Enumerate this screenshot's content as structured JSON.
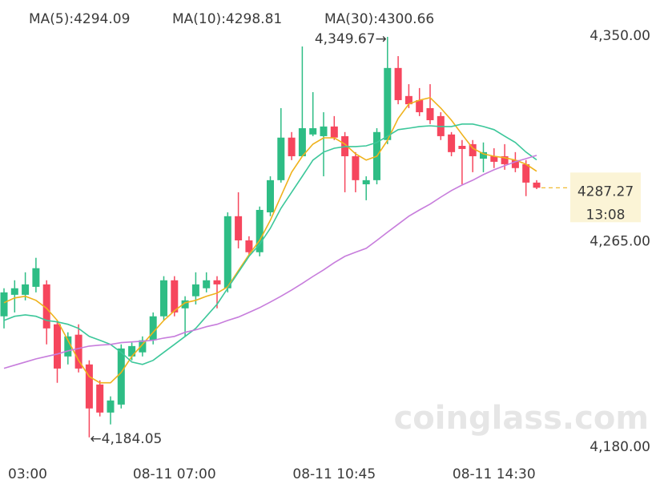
{
  "chart_data": {
    "type": "candlestick",
    "categories": [
      "03:00",
      null,
      null,
      null,
      null,
      null,
      null,
      null,
      null,
      null,
      null,
      null,
      null,
      null,
      null,
      null,
      "08-11 07:00",
      null,
      null,
      null,
      null,
      null,
      null,
      null,
      null,
      null,
      null,
      null,
      null,
      null,
      null,
      "08-11 10:45",
      null,
      null,
      null,
      null,
      null,
      null,
      null,
      null,
      null,
      null,
      null,
      null,
      null,
      null,
      "08-11 14:30",
      null,
      null,
      null,
      null
    ],
    "open": [
      4234.1,
      4243.0,
      4243.0,
      4246.3,
      4247.3,
      4230.8,
      4217.5,
      4226.5,
      4214.2,
      4205.9,
      4194.3,
      4197.6,
      4217.5,
      4219.2,
      4224.2,
      4234.1,
      4249.0,
      4237.4,
      4242.4,
      4245.7,
      4249.0,
      4245.7,
      4275.5,
      4265.5,
      4260.6,
      4277.1,
      4290.4,
      4308.0,
      4300.3,
      4309.3,
      4308.6,
      4312.6,
      4308.6,
      4300.3,
      4288.7,
      4290.4,
      4307.0,
      4336.8,
      4325.2,
      4323.5,
      4320.2,
      4316.9,
      4309.3,
      4304.6,
      4305.3,
      4299.3,
      4300.3,
      4300.3,
      4298.7,
      4297.0,
      4289.4
    ],
    "high": [
      4245.7,
      4249.0,
      4252.3,
      4258.3,
      4249.0,
      4232.4,
      4227.5,
      4230.8,
      4215.9,
      4207.6,
      4201.0,
      4222.5,
      4223.2,
      4225.8,
      4235.7,
      4250.7,
      4250.7,
      4242.4,
      4252.3,
      4252.3,
      4250.7,
      4277.1,
      4285.4,
      4267.2,
      4279.5,
      4292.0,
      4320.2,
      4310.3,
      4345.7,
      4326.8,
      4318.5,
      4316.9,
      4310.3,
      4302.0,
      4292.0,
      4311.9,
      4349.67,
      4341.7,
      4330.1,
      4328.5,
      4330.1,
      4318.5,
      4310.3,
      4307.0,
      4307.0,
      4306.0,
      4303.6,
      4305.3,
      4302.0,
      4298.7,
      4290.4
    ],
    "low": [
      4229.1,
      4235.7,
      4240.7,
      4244.0,
      4222.5,
      4206.6,
      4214.2,
      4210.9,
      4184.05,
      4192.7,
      4189.4,
      4196.0,
      4215.9,
      4217.5,
      4222.5,
      4232.4,
      4234.1,
      4225.8,
      4239.0,
      4244.0,
      4237.4,
      4244.0,
      4262.2,
      4258.9,
      4258.9,
      4275.5,
      4289.4,
      4298.7,
      4300.3,
      4308.6,
      4292.0,
      4307.0,
      4285.4,
      4285.4,
      4282.1,
      4288.7,
      4305.3,
      4321.8,
      4320.2,
      4316.9,
      4313.6,
      4307.0,
      4300.3,
      4288.7,
      4293.7,
      4293.7,
      4295.4,
      4294.7,
      4293.7,
      4283.8,
      4286.7
    ],
    "close": [
      4244.0,
      4245.7,
      4247.3,
      4254.0,
      4229.1,
      4212.5,
      4225.8,
      4212.5,
      4196.0,
      4194.3,
      4199.3,
      4220.8,
      4221.8,
      4224.2,
      4234.1,
      4249.0,
      4235.7,
      4240.7,
      4247.3,
      4249.0,
      4247.3,
      4275.5,
      4265.5,
      4260.6,
      4278.1,
      4290.4,
      4308.0,
      4300.3,
      4311.9,
      4311.9,
      4312.6,
      4308.0,
      4300.3,
      4290.4,
      4290.4,
      4310.3,
      4336.8,
      4323.5,
      4321.8,
      4318.5,
      4315.2,
      4308.6,
      4302.0,
      4303.3,
      4300.3,
      4302.0,
      4298.0,
      4297.0,
      4295.4,
      4289.4,
      4287.27
    ],
    "up_color": "#2ebd85",
    "down_color": "#f6465d",
    "series": [
      {
        "name": "MA(5):4294.09",
        "color": "#efb21c",
        "values": [
          4239.7,
          4241.7,
          4242.4,
          4240.7,
          4237.4,
          4232.4,
          4224.2,
          4215.9,
          4209.2,
          4206.6,
          4206.6,
          4210.9,
          4217.5,
          4222.5,
          4227.5,
          4232.4,
          4236.4,
          4239.7,
          4240.7,
          4242.4,
          4243.7,
          4246.3,
          4253.0,
          4259.6,
          4265.5,
          4273.8,
          4283.8,
          4293.7,
          4300.3,
          4305.3,
          4307.9,
          4307.9,
          4305.3,
          4301.3,
          4298.7,
          4300.3,
          4306.9,
          4315.9,
          4321.9,
          4323.5,
          4324.5,
          4320.2,
          4315.2,
          4309.3,
          4303.6,
          4301.3,
          4300.3,
          4299.7,
          4298.7,
          4297.0,
          4294.09
        ]
      },
      {
        "name": "MA(10):4298.81",
        "color": "#3cc79a",
        "values": [
          4232.4,
          4234.1,
          4234.7,
          4234.1,
          4232.4,
          4231.8,
          4230.8,
          4229.1,
          4225.8,
          4224.2,
          4222.5,
          4219.2,
          4215.2,
          4214.2,
          4215.9,
          4219.2,
          4222.5,
          4225.8,
          4229.1,
          4234.1,
          4239.1,
          4245.7,
          4252.3,
          4258.9,
          4263.9,
          4270.5,
          4278.8,
          4285.4,
          4292.0,
          4298.7,
          4302.0,
          4303.6,
          4304.3,
          4304.3,
          4304.6,
          4306.0,
          4308.6,
          4311.3,
          4311.9,
          4312.6,
          4312.9,
          4312.6,
          4312.6,
          4313.6,
          4313.6,
          4312.6,
          4311.3,
          4308.6,
          4306.0,
          4302.0,
          4298.81
        ]
      },
      {
        "name": "MA(30):4300.66",
        "color": "#c77ddc",
        "values": [
          4212.6,
          4213.9,
          4215.2,
          4216.5,
          4217.5,
          4218.5,
          4219.8,
          4220.8,
          4221.8,
          4222.2,
          4222.5,
          4223.2,
          4223.5,
          4223.8,
          4224.2,
          4225.1,
          4225.8,
          4227.5,
          4228.5,
          4229.8,
          4230.8,
          4232.4,
          4233.8,
          4235.7,
          4237.7,
          4240.0,
          4242.4,
          4245.0,
          4247.7,
          4250.6,
          4253.3,
          4256.3,
          4258.9,
          4260.6,
          4262.2,
          4265.5,
          4268.9,
          4272.2,
          4275.5,
          4278.1,
          4280.5,
          4283.4,
          4286.1,
          4288.4,
          4290.4,
          4292.7,
          4294.7,
          4296.4,
          4298.0,
          4299.3,
          4300.66
        ]
      }
    ],
    "ylim": [
      4180,
      4350
    ],
    "yticks": [
      {
        "value": 4350,
        "label": "4,350.00"
      },
      {
        "value": 4265,
        "label": "4,265.00"
      },
      {
        "value": 4180,
        "label": "4,180.00"
      }
    ],
    "annotations": [
      {
        "value": 4349.67,
        "label": "4,349.67→"
      },
      {
        "value": 4184.05,
        "label": "←4,184.05"
      }
    ],
    "last_price": 4287.27,
    "countdown": "13:08",
    "watermark": "coinglass.com"
  }
}
